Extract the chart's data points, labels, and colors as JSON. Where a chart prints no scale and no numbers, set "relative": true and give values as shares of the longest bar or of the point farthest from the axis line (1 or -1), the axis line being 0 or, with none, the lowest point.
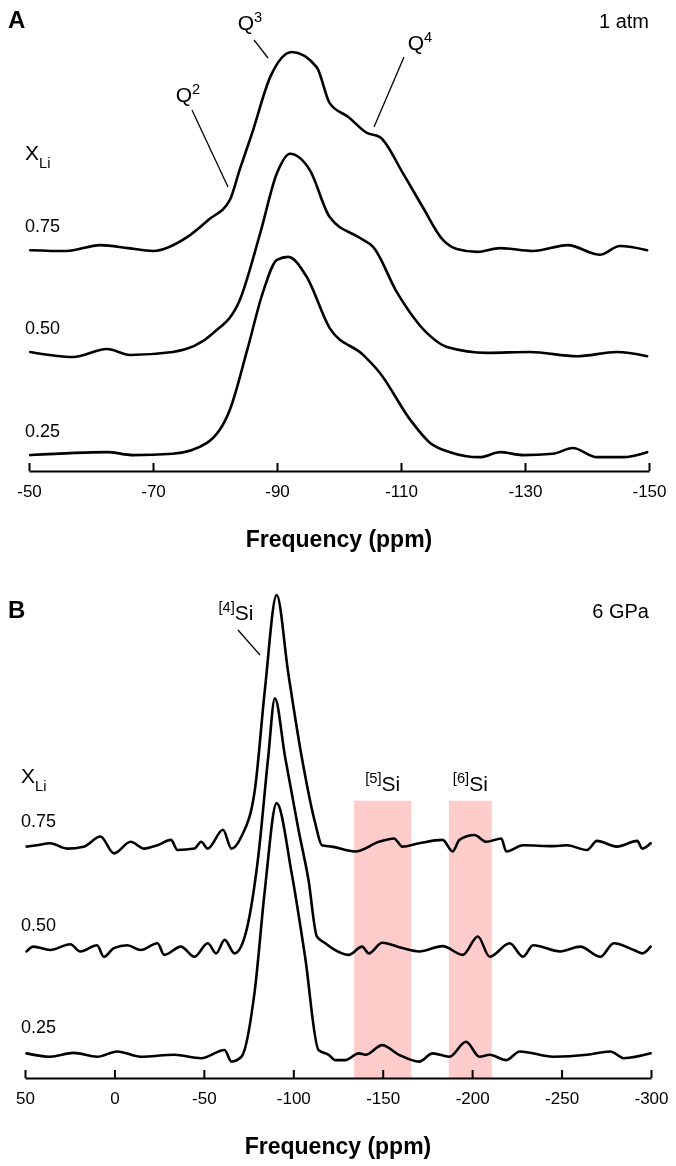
{
  "chart_data": [
    {
      "type": "line",
      "title": "A",
      "xlabel": "Frequency (ppm)",
      "legend_title": "X$_{Li}$",
      "relative": true,
      "xlim": [
        -50,
        -150
      ],
      "xticks": [
        -50,
        -70,
        -90,
        -110,
        -130,
        -150
      ],
      "annotations": [
        "1 atm",
        "Q$^{2}$",
        "Q$^{3}$",
        "Q$^{4}$"
      ],
      "series": [
        {
          "name": "0.75",
          "color": "#000000",
          "x": [
            -50.2,
            -56,
            -61.5,
            -66,
            -70,
            -75.5,
            -79,
            -82.4,
            -84,
            -86,
            -88.9,
            -92.4,
            -96.4,
            -98.5,
            -101.5,
            -104.5,
            -106.6,
            -110.3,
            -113.5,
            -116.8,
            -119,
            -122.3,
            -126,
            -131.3,
            -136.9,
            -142.1,
            -145.3,
            -149.7
          ],
          "values": [
            0.527,
            0.525,
            0.539,
            0.532,
            0.525,
            0.558,
            0.6,
            0.647,
            0.72,
            0.807,
            0.94,
            1.0,
            0.964,
            0.878,
            0.845,
            0.807,
            0.797,
            0.711,
            0.63,
            0.551,
            0.53,
            0.523,
            0.532,
            0.525,
            0.539,
            0.516,
            0.537,
            0.527
          ]
        },
        {
          "name": "0.50",
          "color": "#000000",
          "x": [
            -50.2,
            -57.1,
            -62.6,
            -66.3,
            -73.2,
            -79.7,
            -84,
            -87.3,
            -90,
            -92.1,
            -95.3,
            -98.5,
            -103.4,
            -105.5,
            -109.4,
            -114.2,
            -117.4,
            -123.9,
            -130.8,
            -138.4,
            -144.8,
            -149.7
          ],
          "values": [
            0.284,
            0.272,
            0.291,
            0.277,
            0.284,
            0.329,
            0.408,
            0.568,
            0.711,
            0.757,
            0.718,
            0.606,
            0.556,
            0.535,
            0.425,
            0.329,
            0.296,
            0.282,
            0.284,
            0.274,
            0.284,
            0.274
          ]
        },
        {
          "name": "0.25",
          "color": "#000000",
          "x": [
            -50.2,
            -62.6,
            -66.8,
            -73.2,
            -78.7,
            -82.4,
            -85.2,
            -87.7,
            -90,
            -91.8,
            -94.8,
            -98.5,
            -103.9,
            -106.6,
            -111.5,
            -114.7,
            -117.9,
            -122.7,
            -126,
            -129.7,
            -134.5,
            -137.7,
            -141.6,
            -145.8,
            -149.7
          ],
          "values": [
            0.038,
            0.045,
            0.038,
            0.041,
            0.067,
            0.146,
            0.289,
            0.425,
            0.504,
            0.511,
            0.463,
            0.341,
            0.277,
            0.234,
            0.122,
            0.067,
            0.045,
            0.033,
            0.045,
            0.038,
            0.041,
            0.055,
            0.033,
            0.033,
            0.045
          ]
        }
      ]
    },
    {
      "type": "line",
      "title": "B",
      "xlabel": "Frequency (ppm)",
      "legend_title": "X$_{Li}$",
      "relative": true,
      "xlim": [
        50,
        -300
      ],
      "xticks": [
        50,
        0,
        -50,
        -100,
        -150,
        -200,
        -250,
        -300
      ],
      "annotations": [
        "6 GPa",
        "$^{[4]}$Si"
      ],
      "bands": [
        {
          "axis": "x",
          "from": -134,
          "to": -166,
          "label": "$^{[5]}$Si",
          "color": "#ffcccc"
        },
        {
          "axis": "x",
          "from": -187,
          "to": -211,
          "label": "$^{[6]}$Si",
          "color": "#ffcccc"
        }
      ],
      "series": [
        {
          "name": "0.75",
          "color": "#000000",
          "x": [
            49.1,
            43.4,
            35.9,
            26.6,
            17.2,
            7.8,
            0.3,
            -9.1,
            -16.6,
            -24.1,
            -31.6,
            -35.3,
            -44.7,
            -48.5,
            -52.2,
            -60.7,
            -65.4,
            -71.0,
            -78.5,
            -84.1,
            -90.7,
            -97.2,
            -104.7,
            -112.3,
            -116.0,
            -121.6,
            -134.7,
            -147.9,
            -156.3,
            -161.0,
            -170.4,
            -183.5,
            -189.1,
            -192.9,
            -201.3,
            -207.9,
            -216.3,
            -219.1,
            -228.5,
            -245.4,
            -252.9,
            -264.2,
            -269.8,
            -281.0,
            -292.3,
            -295.1,
            -299.8
          ],
          "values": [
            0.479,
            0.482,
            0.486,
            0.475,
            0.479,
            0.5,
            0.465,
            0.489,
            0.475,
            0.482,
            0.493,
            0.472,
            0.475,
            0.489,
            0.475,
            0.514,
            0.475,
            0.5,
            0.596,
            0.803,
            1.0,
            0.838,
            0.665,
            0.527,
            0.482,
            0.479,
            0.469,
            0.489,
            0.496,
            0.479,
            0.486,
            0.493,
            0.469,
            0.493,
            0.503,
            0.489,
            0.496,
            0.469,
            0.482,
            0.48,
            0.482,
            0.472,
            0.491,
            0.479,
            0.491,
            0.475,
            0.486
          ]
        },
        {
          "name": "0.50",
          "color": "#000000",
          "x": [
            49.1,
            45.3,
            35.9,
            24.7,
            19.1,
            9.7,
            5.9,
            0.3,
            -7.2,
            -14.7,
            -24.1,
            -27.8,
            -37.2,
            -44.7,
            -52.2,
            -56.9,
            -61.6,
            -67.2,
            -72.9,
            -80.4,
            -86.0,
            -89.7,
            -95.4,
            -102.9,
            -108.5,
            -113.2,
            -117.9,
            -121.6,
            -131.0,
            -138.5,
            -142.2,
            -149.7,
            -161.0,
            -170.4,
            -183.5,
            -194.8,
            -203.2,
            -209.8,
            -221.0,
            -228.5,
            -234.1,
            -249.2,
            -260.4,
            -271.7,
            -279.2,
            -290.4,
            -295.1,
            -299.8
          ],
          "values": [
            0.262,
            0.272,
            0.265,
            0.277,
            0.262,
            0.275,
            0.251,
            0.269,
            0.275,
            0.265,
            0.279,
            0.255,
            0.272,
            0.251,
            0.279,
            0.258,
            0.286,
            0.258,
            0.293,
            0.458,
            0.665,
            0.786,
            0.665,
            0.514,
            0.41,
            0.293,
            0.279,
            0.269,
            0.255,
            0.272,
            0.258,
            0.28,
            0.269,
            0.262,
            0.273,
            0.255,
            0.293,
            0.251,
            0.279,
            0.251,
            0.275,
            0.262,
            0.272,
            0.251,
            0.279,
            0.265,
            0.258,
            0.272
          ]
        },
        {
          "name": "0.25",
          "color": "#000000",
          "x": [
            49.1,
            35.9,
            22.8,
            9.7,
            -1.6,
            -14.7,
            -33.5,
            -48.5,
            -61.6,
            -65.4,
            -71.0,
            -78.5,
            -84.1,
            -90.7,
            -99.1,
            -106.6,
            -114.1,
            -119.8,
            -123.5,
            -129.1,
            -136.6,
            -140.4,
            -149.7,
            -159.1,
            -170.4,
            -177.9,
            -187.3,
            -196.6,
            -204.1,
            -209.8,
            -219.1,
            -226.6,
            -245.4,
            -264.2,
            -277.3,
            -284.8,
            -299.8
          ],
          "values": [
            0.051,
            0.044,
            0.052,
            0.044,
            0.055,
            0.044,
            0.048,
            0.041,
            0.058,
            0.034,
            0.044,
            0.182,
            0.389,
            0.569,
            0.424,
            0.251,
            0.058,
            0.048,
            0.037,
            0.037,
            0.051,
            0.048,
            0.068,
            0.048,
            0.034,
            0.051,
            0.044,
            0.075,
            0.044,
            0.048,
            0.037,
            0.055,
            0.044,
            0.048,
            0.055,
            0.041,
            0.051
          ]
        }
      ]
    }
  ]
}
